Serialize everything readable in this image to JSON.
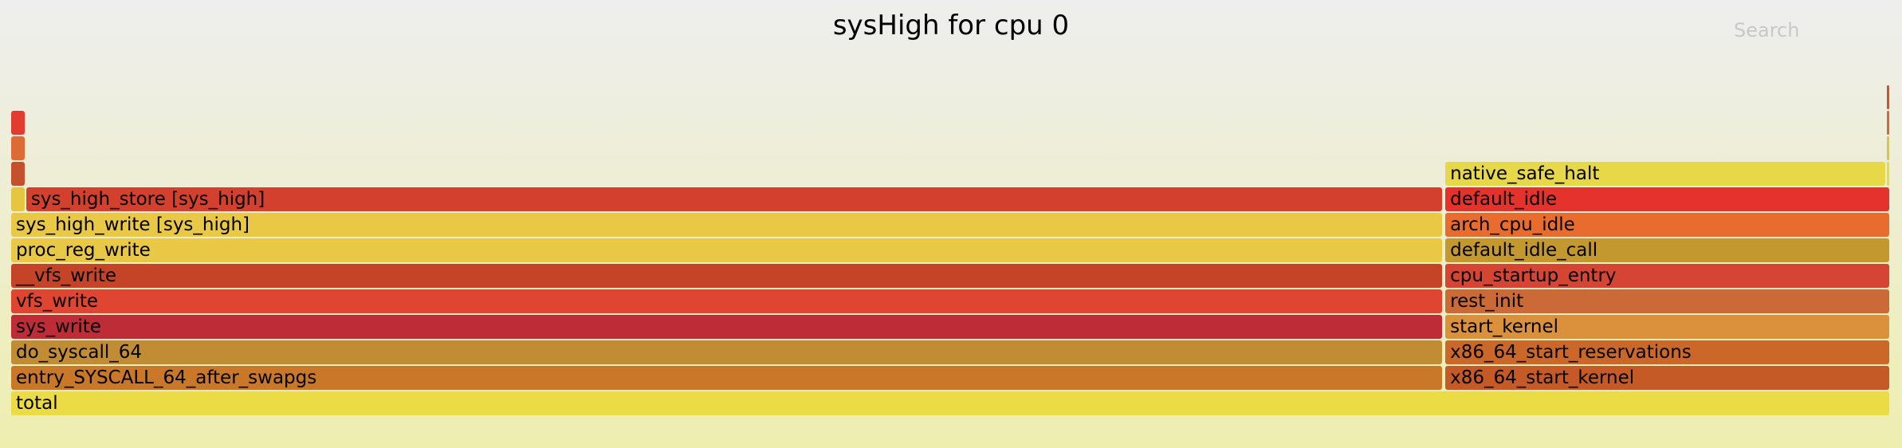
{
  "title": "sysHigh for cpu 0",
  "search": {
    "label": "Search"
  },
  "chart_data": {
    "type": "flamegraph",
    "title": "sysHigh for cpu 0",
    "total_samples": 1000,
    "frames": [
      {
        "name": "total",
        "depth": 0,
        "start": 0,
        "width": 1000,
        "color": "#ebdb45"
      },
      {
        "name": "entry_SYSCALL_64_after_swapgs",
        "depth": 1,
        "start": 0,
        "width": 762,
        "color": "#c9782a"
      },
      {
        "name": "do_syscall_64",
        "depth": 2,
        "start": 0,
        "width": 762,
        "color": "#c18c34"
      },
      {
        "name": "sys_write",
        "depth": 3,
        "start": 0,
        "width": 762,
        "color": "#be2c37"
      },
      {
        "name": "vfs_write",
        "depth": 4,
        "start": 0,
        "width": 762,
        "color": "#e04532"
      },
      {
        "name": "__vfs_write",
        "depth": 5,
        "start": 0,
        "width": 762,
        "color": "#c54428"
      },
      {
        "name": "proc_reg_write",
        "depth": 6,
        "start": 0,
        "width": 762,
        "color": "#e8c845"
      },
      {
        "name": "sys_high_write [sys_high]",
        "depth": 7,
        "start": 0,
        "width": 762,
        "color": "#e9c845"
      },
      {
        "name": "",
        "depth": 8,
        "start": 0,
        "width": 8,
        "color": "#e6c641"
      },
      {
        "name": "sys_high_store [sys_high]",
        "depth": 8,
        "start": 8,
        "width": 754,
        "color": "#d4402e"
      },
      {
        "name": "",
        "depth": 9,
        "start": 0,
        "width": 8,
        "color": "#c4502e"
      },
      {
        "name": "",
        "depth": 10,
        "start": 0,
        "width": 8,
        "color": "#dc6b35"
      },
      {
        "name": "",
        "depth": 11,
        "start": 0,
        "width": 8,
        "color": "#e23c30"
      },
      {
        "name": "x86_64_start_kernel",
        "depth": 1,
        "start": 763,
        "width": 237,
        "color": "#c65a26"
      },
      {
        "name": "x86_64_start_reservations",
        "depth": 2,
        "start": 763,
        "width": 237,
        "color": "#cb6728"
      },
      {
        "name": "start_kernel",
        "depth": 3,
        "start": 763,
        "width": 237,
        "color": "#db913b"
      },
      {
        "name": "rest_init",
        "depth": 4,
        "start": 763,
        "width": 237,
        "color": "#cb6a37"
      },
      {
        "name": "cpu_startup_entry",
        "depth": 5,
        "start": 763,
        "width": 237,
        "color": "#d64533"
      },
      {
        "name": "default_idle_call",
        "depth": 6,
        "start": 763,
        "width": 237,
        "color": "#c3992f"
      },
      {
        "name": "arch_cpu_idle",
        "depth": 7,
        "start": 763,
        "width": 237,
        "color": "#e96c2f"
      },
      {
        "name": "default_idle",
        "depth": 8,
        "start": 763,
        "width": 237,
        "color": "#e6322d"
      },
      {
        "name": "native_safe_halt",
        "depth": 9,
        "start": 763,
        "width": 235,
        "color": "#e6d849"
      },
      {
        "name": "",
        "depth": 9,
        "start": 998,
        "width": 2,
        "color": "#e0dd45"
      },
      {
        "name": "",
        "depth": 10,
        "start": 998,
        "width": 2,
        "color": "#d6c840"
      },
      {
        "name": "",
        "depth": 11,
        "start": 998,
        "width": 2,
        "color": "#dd6433"
      },
      {
        "name": "",
        "depth": 12,
        "start": 998,
        "width": 2,
        "color": "#d74e2c"
      }
    ]
  }
}
